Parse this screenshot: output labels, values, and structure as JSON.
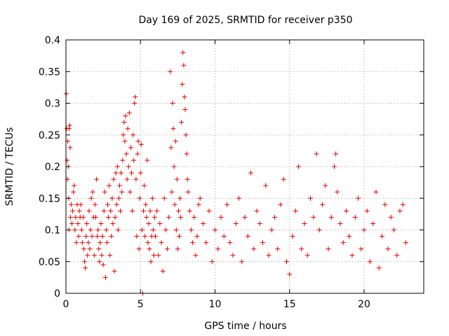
{
  "chart_data": {
    "type": "scatter",
    "title": "Day 169 of 2025, SRMTID for receiver p350",
    "xlabel": "GPS time / hours",
    "ylabel": "SRMTID / TECUs",
    "xlim": [
      0,
      24
    ],
    "ylim": [
      0,
      0.4
    ],
    "xticks": [
      0,
      5,
      10,
      15,
      20
    ],
    "xtick_labels": [
      "0",
      "5",
      "10",
      "15",
      "20"
    ],
    "yticks": [
      0,
      0.05,
      0.1,
      0.15,
      0.2,
      0.25,
      0.3,
      0.35,
      0.4
    ],
    "ytick_labels": [
      "0",
      "0.05",
      "0.1",
      "0.15",
      "0.2",
      "0.25",
      "0.3",
      "0.35",
      "0.4"
    ],
    "grid": true,
    "marker": "plus",
    "color": "#e00000",
    "series": [
      {
        "name": "SRMTID",
        "x_range": [
          0,
          22.9
        ],
        "data_extent": "dense scatter of thousands of points; values shown here are representative samples",
        "points": [
          [
            0.02,
            0.315
          ],
          [
            0.05,
            0.26
          ],
          [
            0.08,
            0.21
          ],
          [
            0.1,
            0.18
          ],
          [
            0.12,
            0.24
          ],
          [
            0.15,
            0.2
          ],
          [
            0.18,
            0.15
          ],
          [
            0.2,
            0.1
          ],
          [
            0.22,
            0.26
          ],
          [
            0.25,
            0.265
          ],
          [
            0.28,
            0.23
          ],
          [
            0.3,
            0.12
          ],
          [
            0.35,
            0.14
          ],
          [
            0.4,
            0.11
          ],
          [
            0.45,
            0.13
          ],
          [
            0.5,
            0.16
          ],
          [
            0.55,
            0.17
          ],
          [
            0.6,
            0.1
          ],
          [
            0.65,
            0.12
          ],
          [
            0.7,
            0.08
          ],
          [
            0.75,
            0.14
          ],
          [
            0.8,
            0.11
          ],
          [
            0.85,
            0.09
          ],
          [
            0.9,
            0.13
          ],
          [
            0.95,
            0.12
          ],
          [
            1.0,
            0.14
          ],
          [
            1.05,
            0.1
          ],
          [
            1.1,
            0.08
          ],
          [
            1.15,
            0.12
          ],
          [
            1.2,
            0.07
          ],
          [
            1.25,
            0.05
          ],
          [
            1.3,
            0.04
          ],
          [
            1.35,
            0.09
          ],
          [
            1.4,
            0.11
          ],
          [
            1.45,
            0.06
          ],
          [
            1.5,
            0.08
          ],
          [
            1.55,
            0.13
          ],
          [
            1.6,
            0.07
          ],
          [
            1.65,
            0.1
          ],
          [
            1.7,
            0.15
          ],
          [
            1.75,
            0.09
          ],
          [
            1.8,
            0.16
          ],
          [
            1.85,
            0.12
          ],
          [
            1.9,
            0.06
          ],
          [
            1.95,
            0.14
          ],
          [
            2.0,
            0.12
          ],
          [
            2.05,
            0.18
          ],
          [
            2.1,
            0.09
          ],
          [
            2.15,
            0.1
          ],
          [
            2.2,
            0.07
          ],
          [
            2.25,
            0.05
          ],
          [
            2.3,
            0.08
          ],
          [
            2.35,
            0.11
          ],
          [
            2.4,
            0.06
          ],
          [
            2.45,
            0.09
          ],
          [
            2.5,
            0.045
          ],
          [
            2.55,
            0.13
          ],
          [
            2.6,
            0.16
          ],
          [
            2.65,
            0.025
          ],
          [
            2.7,
            0.1
          ],
          [
            2.75,
            0.08
          ],
          [
            2.8,
            0.14
          ],
          [
            2.85,
            0.12
          ],
          [
            2.9,
            0.17
          ],
          [
            2.95,
            0.06
          ],
          [
            3.0,
            0.13
          ],
          [
            3.05,
            0.09
          ],
          [
            3.1,
            0.15
          ],
          [
            3.15,
            0.11
          ],
          [
            3.2,
            0.18
          ],
          [
            3.25,
            0.035
          ],
          [
            3.3,
            0.12
          ],
          [
            3.35,
            0.19
          ],
          [
            3.4,
            0.14
          ],
          [
            3.45,
            0.2
          ],
          [
            3.5,
            0.1
          ],
          [
            3.55,
            0.15
          ],
          [
            3.6,
            0.17
          ],
          [
            3.65,
            0.13
          ],
          [
            3.7,
            0.19
          ],
          [
            3.75,
            0.16
          ],
          [
            3.8,
            0.21
          ],
          [
            3.85,
            0.25
          ],
          [
            3.9,
            0.27
          ],
          [
            3.95,
            0.24
          ],
          [
            4.0,
            0.28
          ],
          [
            4.05,
            0.22
          ],
          [
            4.1,
            0.18
          ],
          [
            4.15,
            0.26
          ],
          [
            4.2,
            0.2
          ],
          [
            4.25,
            0.285
          ],
          [
            4.3,
            0.16
          ],
          [
            4.35,
            0.23
          ],
          [
            4.4,
            0.19
          ],
          [
            4.45,
            0.13
          ],
          [
            4.5,
            0.25
          ],
          [
            4.55,
            0.21
          ],
          [
            4.6,
            0.3
          ],
          [
            4.65,
            0.31
          ],
          [
            4.7,
            0.18
          ],
          [
            4.75,
            0.09
          ],
          [
            4.8,
            0.22
          ],
          [
            4.85,
            0.24
          ],
          [
            4.9,
            0.07
          ],
          [
            4.95,
            0.15
          ],
          [
            5.0,
            0.19
          ],
          [
            5.05,
            0.235
          ],
          [
            5.1,
            0.1
          ],
          [
            5.15,
            0.0
          ],
          [
            5.2,
            0.13
          ],
          [
            5.25,
            0.17
          ],
          [
            5.3,
            0.09
          ],
          [
            5.35,
            0.14
          ],
          [
            5.4,
            0.12
          ],
          [
            5.45,
            0.21
          ],
          [
            5.5,
            0.08
          ],
          [
            5.55,
            0.11
          ],
          [
            5.6,
            0.07
          ],
          [
            5.65,
            0.13
          ],
          [
            5.7,
            0.05
          ],
          [
            5.75,
            0.09
          ],
          [
            5.8,
            0.15
          ],
          [
            5.85,
            0.1
          ],
          [
            5.9,
            0.06
          ],
          [
            5.95,
            0.12
          ],
          [
            6.0,
            0.09
          ],
          [
            6.1,
            0.13
          ],
          [
            6.2,
            0.06
          ],
          [
            6.3,
            0.11
          ],
          [
            6.4,
            0.08
          ],
          [
            6.5,
            0.035
          ],
          [
            6.6,
            0.15
          ],
          [
            6.7,
            0.1
          ],
          [
            6.8,
            0.07
          ],
          [
            6.9,
            0.12
          ],
          [
            7.0,
            0.35
          ],
          [
            7.05,
            0.23
          ],
          [
            7.1,
            0.16
          ],
          [
            7.15,
            0.3
          ],
          [
            7.2,
            0.26
          ],
          [
            7.25,
            0.2
          ],
          [
            7.3,
            0.14
          ],
          [
            7.35,
            0.24
          ],
          [
            7.4,
            0.1
          ],
          [
            7.45,
            0.18
          ],
          [
            7.5,
            0.07
          ],
          [
            7.55,
            0.13
          ],
          [
            7.6,
            0.09
          ],
          [
            7.65,
            0.15
          ],
          [
            7.7,
            0.12
          ],
          [
            7.75,
            0.27
          ],
          [
            7.8,
            0.33
          ],
          [
            7.85,
            0.38
          ],
          [
            7.9,
            0.36
          ],
          [
            7.95,
            0.31
          ],
          [
            8.0,
            0.29
          ],
          [
            8.05,
            0.25
          ],
          [
            8.1,
            0.22
          ],
          [
            8.15,
            0.18
          ],
          [
            8.2,
            0.16
          ],
          [
            8.3,
            0.13
          ],
          [
            8.4,
            0.1
          ],
          [
            8.5,
            0.08
          ],
          [
            8.6,
            0.12
          ],
          [
            8.7,
            0.06
          ],
          [
            8.8,
            0.09
          ],
          [
            8.9,
            0.14
          ],
          [
            9.0,
            0.15
          ],
          [
            9.2,
            0.11
          ],
          [
            9.4,
            0.08
          ],
          [
            9.6,
            0.13
          ],
          [
            9.8,
            0.05
          ],
          [
            10.0,
            0.1
          ],
          [
            10.2,
            0.07
          ],
          [
            10.4,
            0.12
          ],
          [
            10.6,
            0.09
          ],
          [
            10.8,
            0.14
          ],
          [
            11.0,
            0.08
          ],
          [
            11.2,
            0.06
          ],
          [
            11.4,
            0.11
          ],
          [
            11.6,
            0.15
          ],
          [
            11.8,
            0.05
          ],
          [
            12.0,
            0.12
          ],
          [
            12.2,
            0.09
          ],
          [
            12.4,
            0.19
          ],
          [
            12.6,
            0.07
          ],
          [
            12.8,
            0.13
          ],
          [
            13.0,
            0.11
          ],
          [
            13.2,
            0.08
          ],
          [
            13.4,
            0.17
          ],
          [
            13.6,
            0.06
          ],
          [
            13.8,
            0.1
          ],
          [
            14.0,
            0.12
          ],
          [
            14.2,
            0.07
          ],
          [
            14.4,
            0.14
          ],
          [
            14.6,
            0.18
          ],
          [
            14.8,
            0.05
          ],
          [
            15.0,
            0.03
          ],
          [
            15.2,
            0.09
          ],
          [
            15.4,
            0.13
          ],
          [
            15.6,
            0.2
          ],
          [
            15.8,
            0.07
          ],
          [
            16.0,
            0.11
          ],
          [
            16.2,
            0.06
          ],
          [
            16.4,
            0.15
          ],
          [
            16.6,
            0.12
          ],
          [
            16.8,
            0.22
          ],
          [
            17.0,
            0.1
          ],
          [
            17.2,
            0.14
          ],
          [
            17.4,
            0.17
          ],
          [
            17.6,
            0.07
          ],
          [
            17.8,
            0.12
          ],
          [
            18.0,
            0.2
          ],
          [
            18.1,
            0.22
          ],
          [
            18.2,
            0.16
          ],
          [
            18.4,
            0.11
          ],
          [
            18.6,
            0.08
          ],
          [
            18.8,
            0.13
          ],
          [
            19.0,
            0.09
          ],
          [
            19.2,
            0.06
          ],
          [
            19.4,
            0.12
          ],
          [
            19.6,
            0.15
          ],
          [
            19.8,
            0.07
          ],
          [
            20.0,
            0.1
          ],
          [
            20.2,
            0.13
          ],
          [
            20.4,
            0.05
          ],
          [
            20.6,
            0.11
          ],
          [
            20.8,
            0.16
          ],
          [
            21.0,
            0.04
          ],
          [
            21.2,
            0.09
          ],
          [
            21.4,
            0.14
          ],
          [
            21.6,
            0.07
          ],
          [
            21.8,
            0.12
          ],
          [
            22.0,
            0.1
          ],
          [
            22.2,
            0.06
          ],
          [
            22.4,
            0.13
          ],
          [
            22.6,
            0.14
          ],
          [
            22.8,
            0.08
          ]
        ]
      }
    ]
  }
}
